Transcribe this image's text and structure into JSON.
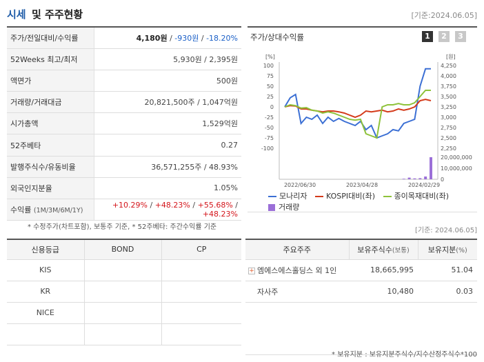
{
  "header": {
    "title_blue": "시세",
    "title_rest": "및 주주현황",
    "base_date": "[기준:2024.06.05]"
  },
  "info_rows": [
    {
      "label": "주가/전일대비/수익률",
      "price": "4,180원",
      "change": "-930원",
      "rate": "-18.20%"
    },
    {
      "label": "52Weeks 최고/최저",
      "value": "5,930원 / 2,395원"
    },
    {
      "label": "액면가",
      "value": "500원"
    },
    {
      "label": "거래량/거래대금",
      "value": "20,821,500주 / 1,047억원"
    },
    {
      "label": "시가총액",
      "value": "1,529억원"
    },
    {
      "label": "52주베타",
      "value": "0.27"
    },
    {
      "label": "발행주식수/유동비율",
      "value": "36,571,255주 / 48.93%"
    },
    {
      "label": "외국인지분율",
      "value": "1.05%"
    },
    {
      "label": "수익률",
      "label_small": "(1M/3M/6M/1Y)",
      "r1": "+10.29%",
      "r2": "+48.23%",
      "r3": "+55.68%",
      "r4": "+48.23%",
      "sep": "/"
    }
  ],
  "footnote1": "* 수정주가(차트포함), 보통주 기준, * 52주베타: 주간수익률 기준",
  "chart": {
    "title": "주가/상대수익률",
    "pages": [
      "1",
      "2",
      "3"
    ],
    "left_unit": "[%]",
    "right_unit": "[원]",
    "left_ticks": [
      "100",
      "75",
      "50",
      "25",
      "0",
      "-25",
      "-50",
      "-75",
      "-100"
    ],
    "right_ticks": [
      "4,250",
      "4,000",
      "3,750",
      "3,500",
      "3,250",
      "3,000",
      "2,750",
      "2,500",
      "2,250"
    ],
    "vol_ticks": [
      "20,000,000",
      "10,000,000",
      "0"
    ],
    "x_ticks": [
      "2022/06/30",
      "2023/04/28",
      "2024/02/29"
    ],
    "legend": [
      "모나리자",
      "KOSPI대비(좌)",
      "종이목재대비(좌)",
      "거래량"
    ],
    "colors": {
      "main": "#3b6fd4",
      "kospi": "#d43a1a",
      "paper": "#8ec23a",
      "volume": "#9b6fd8"
    }
  },
  "chart_data": {
    "type": "line",
    "x_label_points": [
      "2022/06/30",
      "2023/04/28",
      "2024/02/29"
    ],
    "ylim_left": [
      -100,
      100
    ],
    "series": [
      {
        "name": "모나리자",
        "values": [
          0,
          22,
          30,
          -40,
          -25,
          -30,
          -20,
          -40,
          -25,
          -35,
          -28,
          -35,
          -40,
          -45,
          -35,
          -55,
          -45,
          -75,
          -70,
          -65,
          -55,
          -58,
          -40,
          -35,
          -30,
          50,
          92,
          92
        ]
      },
      {
        "name": "KOSPI대비(좌)",
        "values": [
          0,
          3,
          2,
          -5,
          -5,
          -8,
          -10,
          -12,
          -10,
          -10,
          -12,
          -15,
          -20,
          -25,
          -20,
          -10,
          -12,
          -10,
          -8,
          -12,
          -10,
          -5,
          -8,
          -5,
          0,
          15,
          18,
          15
        ]
      },
      {
        "name": "종이목재대비(좌)",
        "values": [
          0,
          5,
          3,
          -3,
          -2,
          -8,
          -10,
          -15,
          -12,
          -15,
          -20,
          -25,
          -30,
          -32,
          -30,
          -65,
          -70,
          -75,
          0,
          5,
          5,
          8,
          5,
          5,
          10,
          25,
          40,
          40
        ]
      }
    ],
    "volume": {
      "name": "거래량",
      "values": [
        0,
        0,
        0,
        0,
        0,
        0,
        0,
        0,
        0,
        0,
        0,
        0,
        0,
        0,
        0,
        0,
        0,
        0,
        0,
        0,
        0,
        0,
        500000,
        1500000,
        800000,
        1000000,
        2500000,
        20800000
      ]
    }
  },
  "base_date2": "[기준: 2024.06.05]",
  "credit": {
    "headers": [
      "신용등급",
      "BOND",
      "CP"
    ],
    "rows": [
      [
        "KIS",
        "",
        ""
      ],
      [
        "KR",
        "",
        ""
      ],
      [
        "NICE",
        "",
        ""
      ],
      [
        "",
        "",
        ""
      ]
    ]
  },
  "holders": {
    "h1": "주요주주",
    "h2": "보유주식수",
    "h2s": "(보통)",
    "h3": "보유지분",
    "h3s": "(%)",
    "plus": "+",
    "rows": [
      {
        "name": "엠에스에스홀딩스 외 1인",
        "shares": "18,665,995",
        "pct": "51.04"
      },
      {
        "name": "자사주",
        "shares": "10,480",
        "pct": "0.03"
      },
      {
        "name": "",
        "shares": "",
        "pct": ""
      }
    ]
  },
  "footnote2": "* 보유지분 : 보유지분주식수/지수산정주식수*100"
}
